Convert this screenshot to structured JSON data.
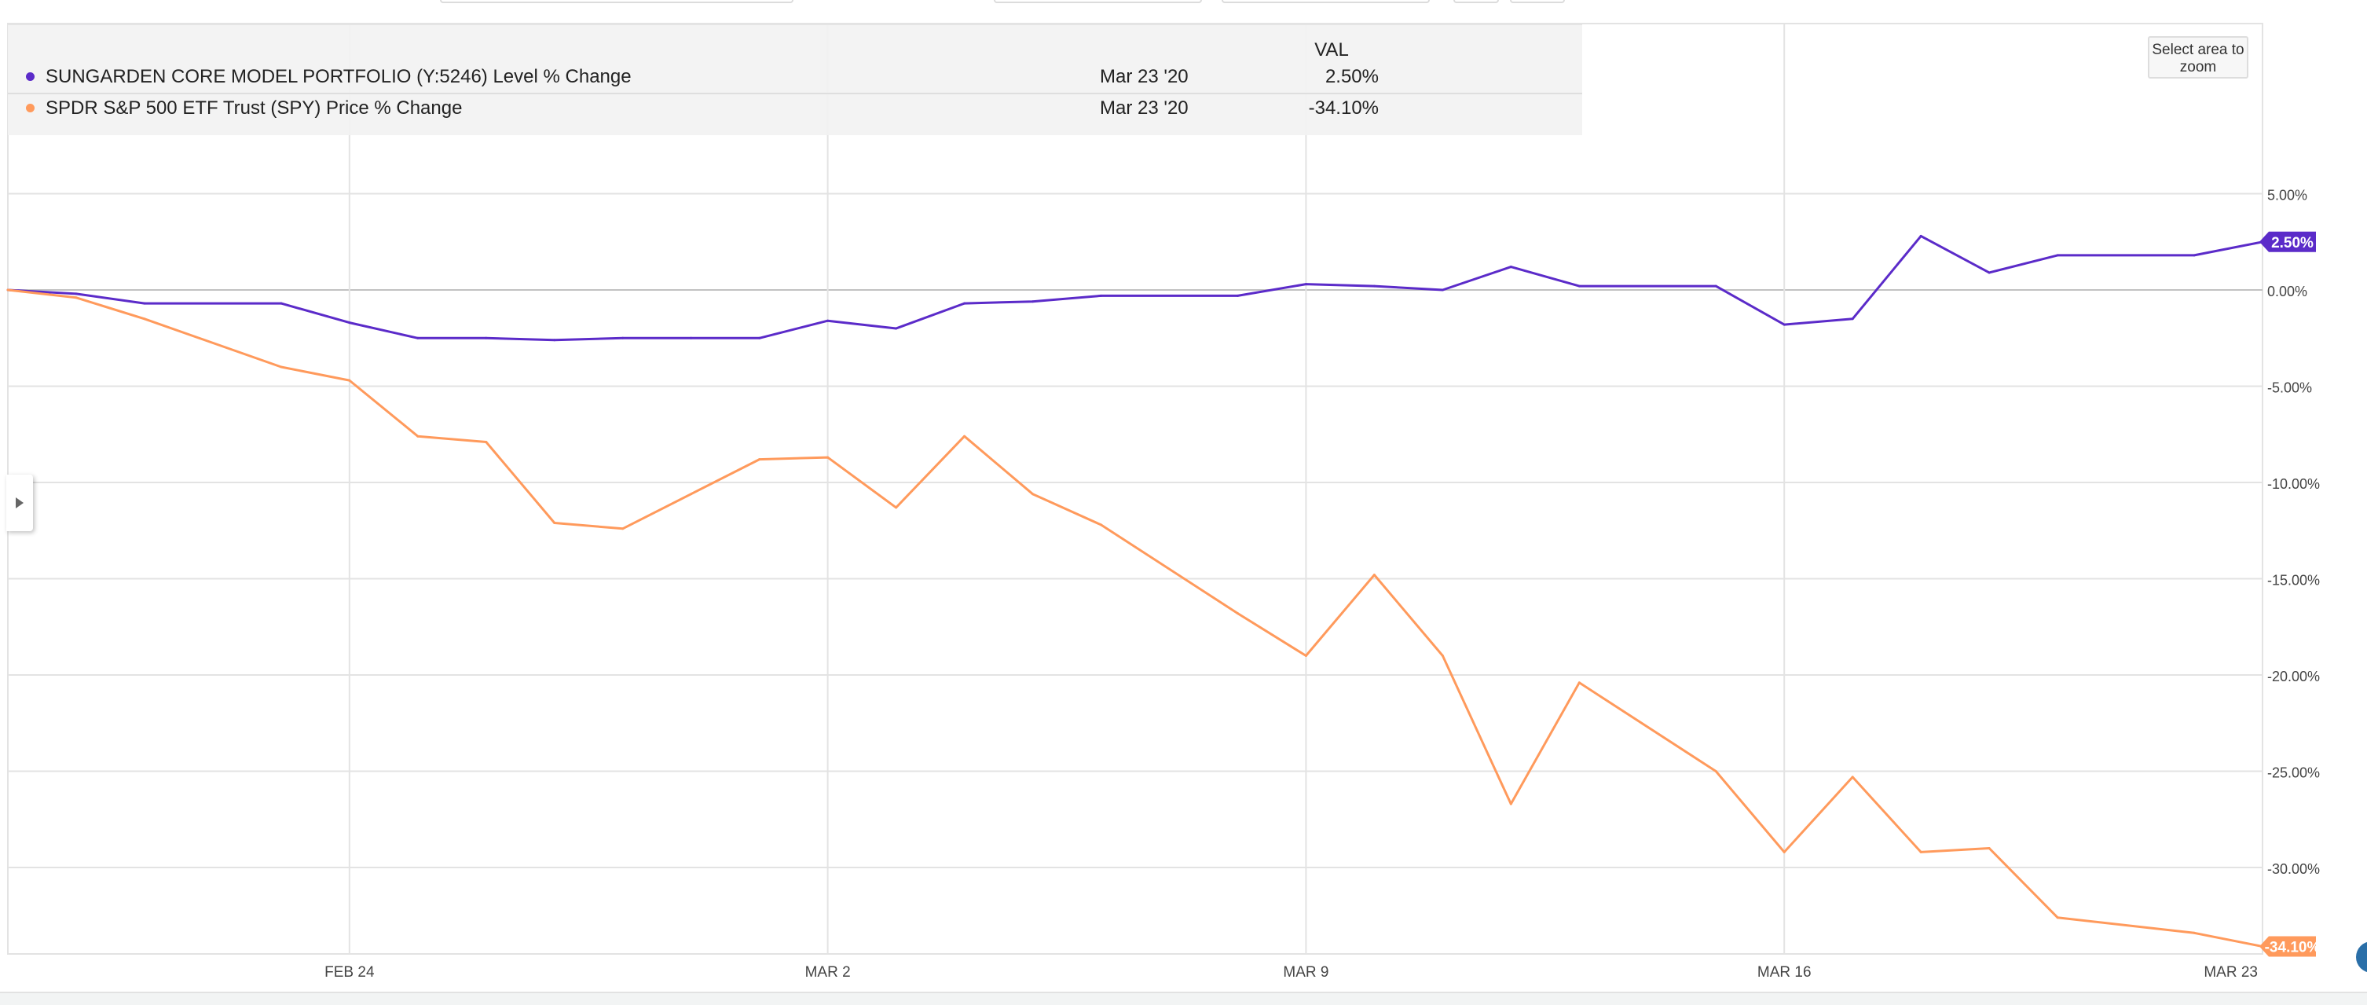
{
  "ui": {
    "zoom_button": "Select area to zoom",
    "legend_header": "VAL"
  },
  "colors": {
    "series1": "#5b2bc9",
    "series2": "#ff9a5c",
    "grid": "#e3e3e3",
    "zero_line": "#c2c2c2",
    "axis_text": "#444444"
  },
  "chart_data": {
    "type": "line",
    "title": "",
    "xlabel": "",
    "ylabel": "",
    "ylim": [
      -34.5,
      9.5
    ],
    "y_ticks": [
      5,
      0,
      -5,
      -10,
      -15,
      -20,
      -25,
      -30
    ],
    "y_tick_labels": [
      "5.00%",
      "0.00%",
      "-5.00%",
      "-10.00%",
      "-15.00%",
      "-20.00%",
      "-25.00%",
      "-30.00%"
    ],
    "x_ticks": [
      {
        "date": "2020-02-24",
        "label": "FEB 24"
      },
      {
        "date": "2020-03-02",
        "label": "MAR 2"
      },
      {
        "date": "2020-03-09",
        "label": "MAR 9"
      },
      {
        "date": "2020-03-16",
        "label": "MAR 16"
      },
      {
        "date": "2020-03-23",
        "label": "MAR 23"
      }
    ],
    "x": [
      "2020-02-19",
      "2020-02-20",
      "2020-02-21",
      "2020-02-23",
      "2020-02-24",
      "2020-02-25",
      "2020-02-26",
      "2020-02-27",
      "2020-02-28",
      "2020-02-29",
      "2020-03-01",
      "2020-03-02",
      "2020-03-03",
      "2020-03-04",
      "2020-03-05",
      "2020-03-06",
      "2020-03-08",
      "2020-03-09",
      "2020-03-10",
      "2020-03-11",
      "2020-03-12",
      "2020-03-13",
      "2020-03-15",
      "2020-03-16",
      "2020-03-17",
      "2020-03-18",
      "2020-03-19",
      "2020-03-20",
      "2020-03-22",
      "2020-03-23"
    ],
    "series": [
      {
        "name": "SUNGARDEN CORE MODEL PORTFOLIO (Y:5246) Level % Change",
        "last_date": "Mar 23 '20",
        "last_value": "2.50%",
        "values": [
          0.0,
          -0.2,
          -0.7,
          -0.7,
          -1.7,
          -2.5,
          -2.5,
          -2.6,
          -2.5,
          -2.5,
          -2.5,
          -1.6,
          -2.0,
          -0.7,
          -0.6,
          -0.3,
          -0.3,
          0.3,
          0.2,
          0.0,
          1.2,
          0.2,
          0.2,
          -1.8,
          -1.5,
          2.8,
          0.9,
          1.8,
          1.8,
          2.5
        ]
      },
      {
        "name": "SPDR S&P 500 ETF Trust (SPY) Price % Change",
        "last_date": "Mar 23 '20",
        "last_value": "-34.10%",
        "values": [
          0.0,
          -0.4,
          -1.5,
          -4.0,
          -4.7,
          -7.6,
          -7.9,
          -12.1,
          -12.4,
          -10.6,
          -8.8,
          -8.7,
          -11.3,
          -7.6,
          -10.6,
          -12.2,
          -16.8,
          -19.0,
          -14.8,
          -19.0,
          -26.7,
          -20.4,
          -25.0,
          -29.2,
          -25.3,
          -29.2,
          -29.0,
          -32.6,
          -33.4,
          -34.1
        ]
      }
    ]
  }
}
